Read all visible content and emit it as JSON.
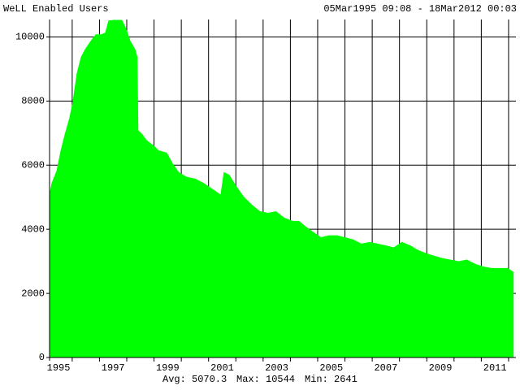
{
  "chart_data": {
    "type": "area",
    "title": "WeLL Enabled Users",
    "subtitle": "05Mar1995 09:08 - 18Mar2012 00:03",
    "footer": {
      "avg_label": "Avg:",
      "avg": 5070.3,
      "max_label": "Max:",
      "max": 10544,
      "min_label": "Min:",
      "min": 2641
    },
    "color": "#00ff00",
    "grid": true,
    "x": [
      1995.17,
      1995.26,
      1995.44,
      1995.59,
      1995.74,
      1995.91,
      1996.03,
      1996.18,
      1996.33,
      1996.48,
      1996.69,
      1996.87,
      1997.07,
      1997.22,
      1997.34,
      1997.52,
      1997.82,
      1997.97,
      1998.12,
      1998.3,
      1998.38,
      1998.41,
      1998.56,
      1998.71,
      1999.01,
      1999.16,
      1999.46,
      1999.66,
      1999.9,
      2000.2,
      2000.5,
      2000.8,
      2001.03,
      2001.24,
      2001.45,
      2001.57,
      2001.75,
      2001.99,
      2002.28,
      2002.58,
      2002.88,
      2003.18,
      2003.47,
      2003.77,
      2004.07,
      2004.31,
      2004.52,
      2004.81,
      2005.11,
      2005.41,
      2005.71,
      2006.0,
      2006.3,
      2006.6,
      2006.9,
      2007.19,
      2007.49,
      2007.79,
      2008.09,
      2008.38,
      2008.68,
      2008.98,
      2009.28,
      2009.57,
      2009.87,
      2010.17,
      2010.47,
      2010.77,
      2011.06,
      2011.36,
      2011.66,
      2011.96,
      2012.17
    ],
    "values": [
      5060,
      5440,
      5820,
      6450,
      6960,
      7470,
      7970,
      8860,
      9360,
      9610,
      9870,
      10070,
      10070,
      10120,
      10500,
      10520,
      10520,
      10250,
      9870,
      9610,
      9360,
      7080,
      6960,
      6780,
      6580,
      6450,
      6380,
      6070,
      5770,
      5620,
      5570,
      5440,
      5310,
      5190,
      5060,
      5770,
      5690,
      5360,
      5010,
      4760,
      4550,
      4500,
      4550,
      4350,
      4250,
      4250,
      4100,
      3920,
      3740,
      3800,
      3800,
      3740,
      3670,
      3540,
      3590,
      3540,
      3490,
      3420,
      3590,
      3490,
      3340,
      3240,
      3160,
      3090,
      3040,
      2990,
      3040,
      2910,
      2830,
      2780,
      2780,
      2780,
      2660
    ],
    "xlim": [
      1995.17,
      2012.21
    ],
    "xticks": [
      {
        "value": 1995.5,
        "label": "1995"
      },
      {
        "value": 1997.5,
        "label": "1997"
      },
      {
        "value": 1999.5,
        "label": "1999"
      },
      {
        "value": 2001.5,
        "label": "2001"
      },
      {
        "value": 2003.5,
        "label": "2003"
      },
      {
        "value": 2005.5,
        "label": "2005"
      },
      {
        "value": 2007.5,
        "label": "2007"
      },
      {
        "value": 2009.5,
        "label": "2009"
      },
      {
        "value": 2011.5,
        "label": "2011"
      }
    ],
    "xgrid": [
      1996,
      1997,
      1998,
      1999,
      2000,
      2001,
      2002,
      2003,
      2004,
      2005,
      2006,
      2007,
      2008,
      2009,
      2010,
      2011,
      2012
    ],
    "ylim": [
      0,
      10544
    ],
    "yticks": [
      0,
      2000,
      4000,
      6000,
      8000,
      10000
    ]
  }
}
